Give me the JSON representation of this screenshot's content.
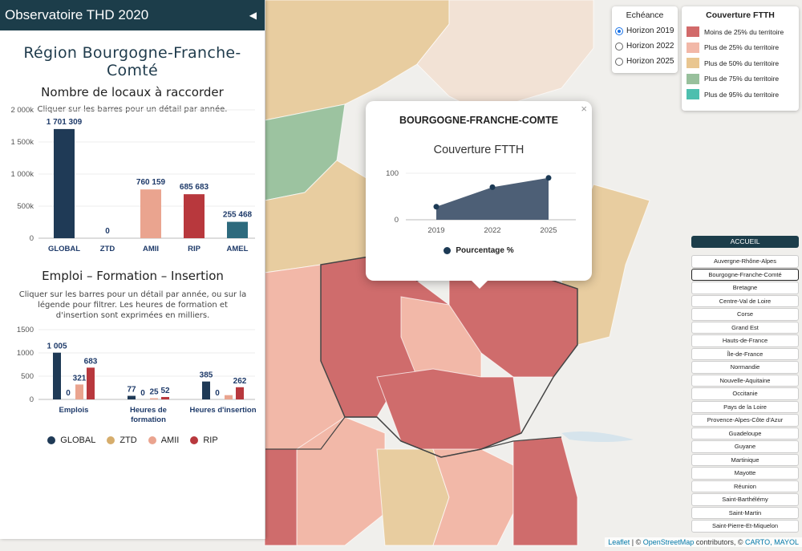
{
  "panel": {
    "title": "Observatoire THD 2020",
    "collapse_icon": "◀",
    "region_title": "Région Bourgogne-Franche-Comté",
    "locaux": {
      "title": "Nombre de locaux à raccorder",
      "subtitle": "Cliquer sur les barres pour un détail par année."
    },
    "emploi": {
      "title": "Emploi – Formation – Insertion",
      "subtitle": [
        "Cliquer sur les barres pour un détail par année, ou sur la",
        "légende pour filtrer. Les heures de formation et",
        "d'insertion sont exprimées en milliers."
      ]
    },
    "legend": [
      {
        "label": "GLOBAL",
        "color": "#1f3a56"
      },
      {
        "label": "ZTD",
        "color": "#d6ad6c"
      },
      {
        "label": "AMII",
        "color": "#eaa48f"
      },
      {
        "label": "RIP",
        "color": "#b8383d"
      }
    ]
  },
  "chart_data": [
    {
      "type": "bar",
      "title": "Nombre de locaux à raccorder",
      "categories": [
        "GLOBAL",
        "ZTD",
        "AMII",
        "RIP",
        "AMEL"
      ],
      "values": [
        1701309,
        0,
        760159,
        685683,
        255468
      ],
      "labels": [
        "1 701 309",
        "0",
        "760 159",
        "685 683",
        "255 468"
      ],
      "colors": [
        "#1f3a56",
        "#d6ad6c",
        "#eaa48f",
        "#b8383d",
        "#2d6a7d"
      ],
      "ylim": [
        0,
        2000000
      ],
      "yticks": [
        0,
        500000,
        1000000,
        1500000,
        2000000
      ],
      "ytick_labels": [
        "0",
        "500k",
        "1 000k",
        "1 500k",
        "2 000k"
      ]
    },
    {
      "type": "bar",
      "title": "Emploi – Formation – Insertion",
      "categories": [
        "Emplois",
        "Heures de formation",
        "Heures d'insertion"
      ],
      "category_lines": [
        [
          "Emplois"
        ],
        [
          "Heures de",
          "formation"
        ],
        [
          "Heures d'insertion"
        ]
      ],
      "series": [
        {
          "name": "GLOBAL",
          "values": [
            1005,
            77,
            385
          ],
          "color": "#1f3a56"
        },
        {
          "name": "ZTD",
          "values": [
            0,
            0,
            0
          ],
          "color": "#d6ad6c"
        },
        {
          "name": "AMII",
          "values": [
            321,
            25,
            92
          ],
          "color": "#eaa48f"
        },
        {
          "name": "RIP",
          "values": [
            683,
            52,
            262
          ],
          "color": "#b8383d"
        }
      ],
      "labels": [
        [
          "1 005",
          "0",
          "321",
          "683"
        ],
        [
          "77",
          "0",
          "25",
          "52"
        ],
        [
          "385",
          "0",
          "",
          "262"
        ]
      ],
      "ylim": [
        0,
        1500
      ],
      "yticks": [
        0,
        500,
        1000,
        1500
      ],
      "ytick_labels": [
        "0",
        "500",
        "1000",
        "1500"
      ]
    },
    {
      "type": "area",
      "title": "Couverture FTTH",
      "x": [
        "2019",
        "2022",
        "2025"
      ],
      "series": [
        {
          "name": "Pourcentage %",
          "values": [
            28,
            70,
            90
          ],
          "color": "#4d5f76"
        }
      ],
      "ylim": [
        0,
        100
      ],
      "yticks": [
        0,
        100
      ],
      "ytick_labels": [
        "0",
        "100"
      ]
    }
  ],
  "popup": {
    "title": "BOURGOGNE-FRANCHE-COMTE",
    "chart_title": "Couverture FTTH",
    "legend": "Pourcentage %",
    "close": "×"
  },
  "echeance": {
    "title": "Echéance",
    "options": [
      {
        "label": "Horizon 2019",
        "checked": true
      },
      {
        "label": "Horizon 2022",
        "checked": false
      },
      {
        "label": "Horizon 2025",
        "checked": false
      }
    ]
  },
  "couverture": {
    "title": "Couverture FTTH",
    "items": [
      {
        "label": "Moins de 25% du territoire",
        "color": "#d26a6a"
      },
      {
        "label": "Plus de 25% du territoire",
        "color": "#f2b8a8"
      },
      {
        "label": "Plus de 50% du territoire",
        "color": "#e9c690"
      },
      {
        "label": "Plus de 75% du territoire",
        "color": "#98c09c"
      },
      {
        "label": "Plus de 95% du territoire",
        "color": "#4dbfae"
      }
    ]
  },
  "nav": {
    "home": "ACCUEIL",
    "active": "Bourgogne-Franche-Comté",
    "regions": [
      "Auvergne-Rhône-Alpes",
      "Bourgogne-Franche-Comté",
      "Bretagne",
      "Centre-Val de Loire",
      "Corse",
      "Grand Est",
      "Hauts-de-France",
      "Île-de-France",
      "Normandie",
      "Nouvelle-Aquitaine",
      "Occitanie",
      "Pays de la Loire",
      "Provence-Alpes-Côte d'Azur",
      "Guadeloupe",
      "Guyane",
      "Martinique",
      "Mayotte",
      "Réunion",
      "Saint-Barthélémy",
      "Saint-Martin",
      "Saint-Pierre-Et-Miquelon"
    ]
  },
  "attribution": {
    "leaflet": "Leaflet",
    "sep1": " | © ",
    "osm": "OpenStreetMap",
    "mid": " contributors, © ",
    "carto": "CARTO, MAYOL"
  }
}
